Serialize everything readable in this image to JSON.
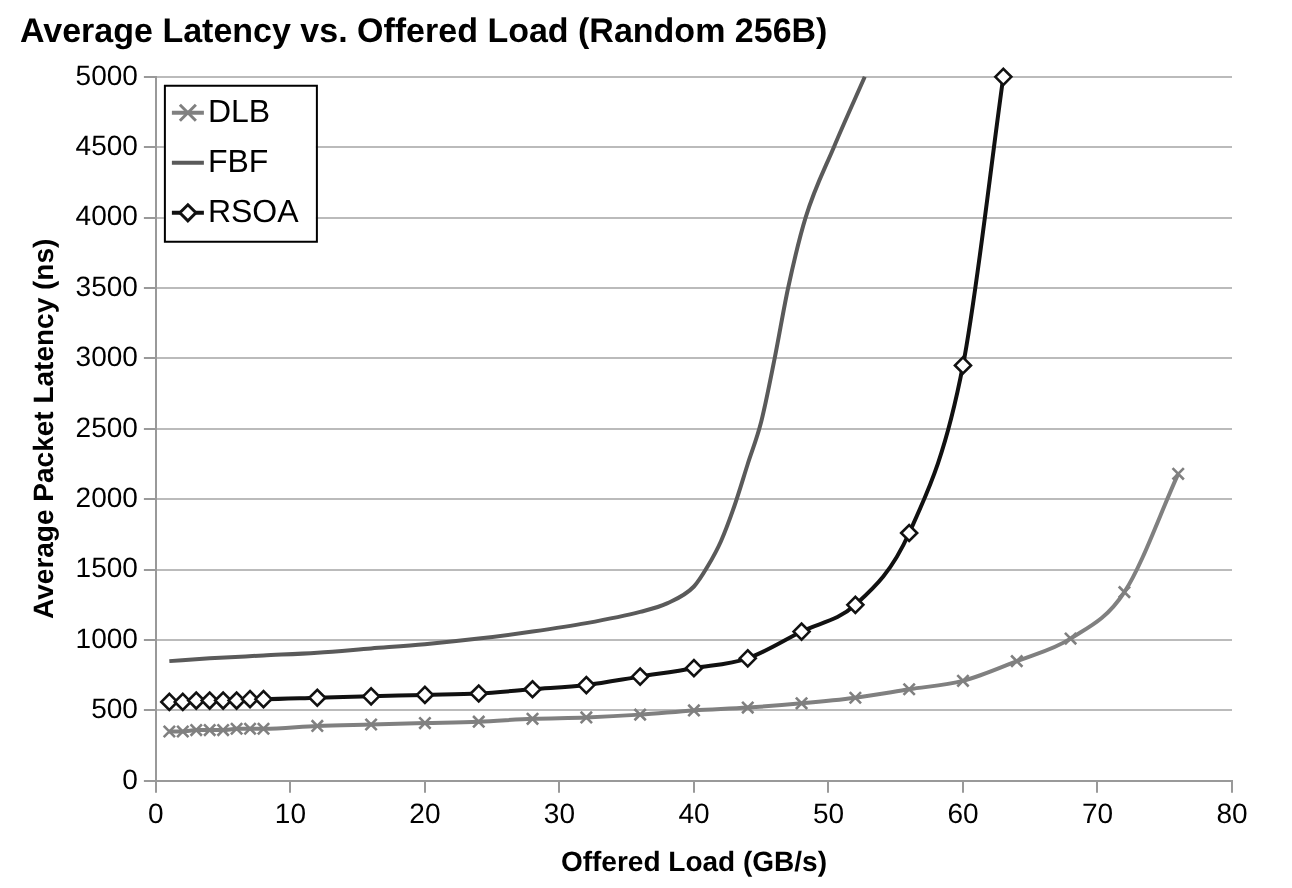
{
  "chart_data": {
    "type": "line",
    "title": "Average Latency vs. Offered Load (Random 256B)",
    "xlabel": "Offered Load (GB/s)",
    "ylabel": "Average Packet Latency (ns)",
    "xlim": [
      0,
      80
    ],
    "xticks": [
      0,
      10,
      20,
      30,
      40,
      50,
      60,
      70,
      80
    ],
    "ylim": [
      0,
      5000
    ],
    "yticks": [
      0,
      500,
      1000,
      1500,
      2000,
      2500,
      3000,
      3500,
      4000,
      4500,
      5000
    ],
    "grid": "y",
    "legend": "top left",
    "series": [
      {
        "name": "DLB",
        "color": "#808080",
        "marker": "cross",
        "x": [
          1,
          2,
          3,
          4,
          5,
          6,
          7,
          8,
          12,
          16,
          20,
          24,
          28,
          32,
          36,
          40,
          44,
          48,
          52,
          56,
          60,
          64,
          68,
          72,
          76
        ],
        "values": [
          350,
          350,
          360,
          360,
          360,
          370,
          370,
          370,
          390,
          400,
          410,
          420,
          440,
          450,
          470,
          500,
          520,
          550,
          590,
          650,
          710,
          850,
          1010,
          1340,
          2180
        ]
      },
      {
        "name": "FBF",
        "color": "#5a5a5a",
        "marker": "none",
        "x": [
          1,
          4,
          8,
          12,
          16,
          20,
          24,
          28,
          32,
          36,
          38,
          40,
          41,
          42,
          43,
          44,
          45,
          46,
          47,
          48.3,
          50.4,
          52.7
        ],
        "values": [
          850,
          870,
          890,
          910,
          940,
          970,
          1010,
          1060,
          1120,
          1200,
          1260,
          1380,
          1520,
          1700,
          1950,
          2250,
          2550,
          3000,
          3500,
          4000,
          4500,
          5000
        ]
      },
      {
        "name": "RSOA",
        "color": "#111111",
        "marker": "diamond",
        "x": [
          1,
          2,
          3,
          4,
          5,
          6,
          7,
          8,
          12,
          16,
          20,
          24,
          28,
          32,
          36,
          40,
          44,
          48,
          52,
          56,
          60,
          63
        ],
        "values": [
          560,
          560,
          570,
          570,
          570,
          570,
          580,
          580,
          590,
          600,
          610,
          620,
          650,
          680,
          740,
          800,
          870,
          1060,
          1250,
          1760,
          2950,
          5000
        ]
      }
    ]
  }
}
